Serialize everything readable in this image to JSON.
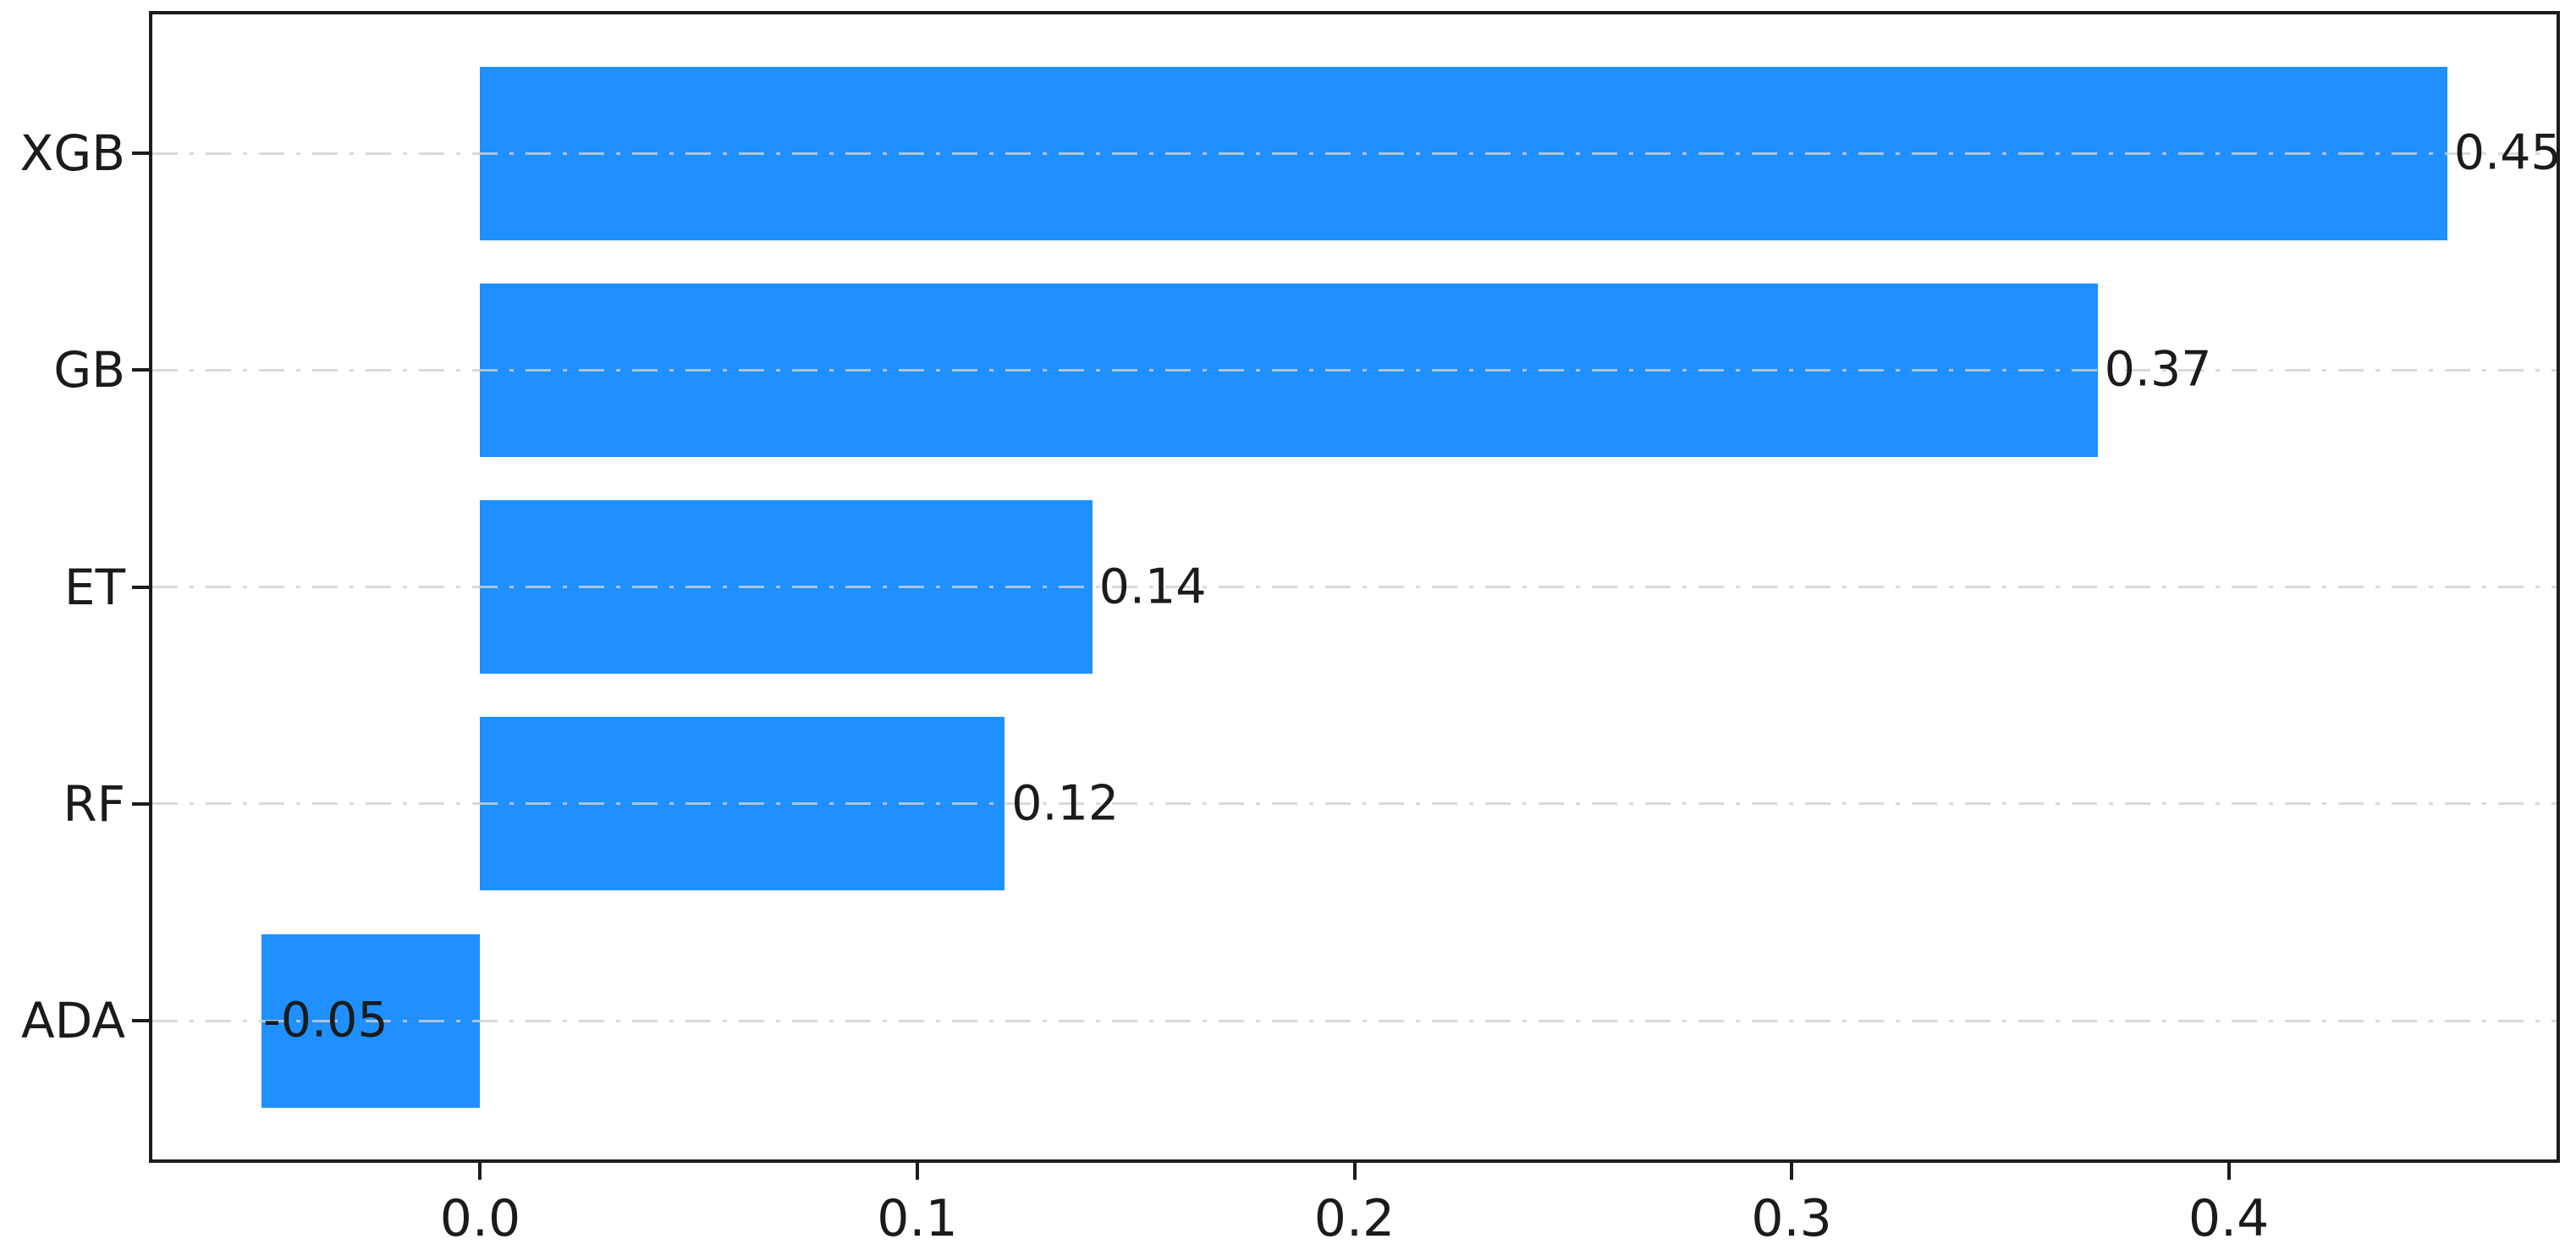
{
  "chart_data": {
    "type": "bar",
    "orientation": "horizontal",
    "title": "",
    "xlabel": "",
    "ylabel": "",
    "categories": [
      "XGB",
      "GB",
      "ET",
      "RF",
      "ADA"
    ],
    "values": [
      0.45,
      0.37,
      0.14,
      0.12,
      -0.05
    ],
    "value_labels": [
      "0.45",
      "0.37",
      "0.14",
      "0.12",
      "-0.05"
    ],
    "xticks": [
      0.0,
      0.1,
      0.2,
      0.3,
      0.4
    ],
    "xtick_labels": [
      "0.0",
      "0.1",
      "0.2",
      "0.3",
      "0.4"
    ],
    "xlim": [
      -0.075,
      0.475
    ],
    "bar_height_frac": 0.8,
    "grid": "horizontal dash-dot gridlines at each category",
    "legend_position": "none",
    "colors": {
      "bar": "#1E90FF",
      "frame": "#1c1c1c",
      "grid": "#d9d9d9",
      "text": "#1b1b1b",
      "background": "#ffffff"
    }
  }
}
